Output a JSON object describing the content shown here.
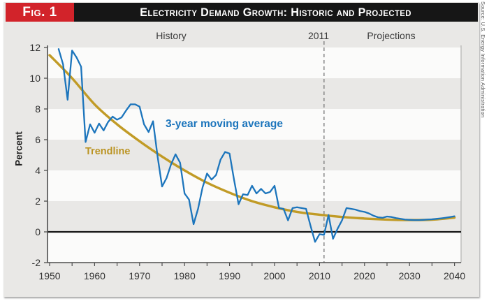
{
  "header": {
    "fig_label": "Fig. 1",
    "title": "Electricity Demand Growth: Historic and Projected"
  },
  "source_note": "Source: U.S. Energy Information Administration",
  "colors": {
    "badge_red": "#d2232a",
    "header_black": "#161616",
    "figure_bg": "#e9e8e6",
    "band_white": "#fbfbfa",
    "axis": "#4d4d4d",
    "tick_text": "#333333",
    "zero_line": "#161616",
    "divider_gray": "#7f7f7f",
    "blue": "#1c75bc",
    "gold": "#c19b26"
  },
  "chart_data": {
    "type": "line",
    "title": "Electricity Demand Growth: Historic and Projected",
    "ylabel": "Percent",
    "xlim": [
      1950,
      2040
    ],
    "ylim": [
      -2,
      12
    ],
    "x_ticks": [
      1950,
      1960,
      1970,
      1980,
      1990,
      2000,
      2010,
      2020,
      2030,
      2040
    ],
    "x_minor_tick_step": 5,
    "y_ticks": [
      -2,
      0,
      2,
      4,
      6,
      8,
      10,
      12
    ],
    "white_bands": [
      [
        -2,
        0
      ],
      [
        2,
        4
      ],
      [
        6,
        8
      ],
      [
        10,
        12
      ]
    ],
    "grid": false,
    "zero_line": 0,
    "divider": {
      "x": 2011,
      "label": "2011"
    },
    "region_labels": [
      {
        "text": "History",
        "x": 1977
      },
      {
        "text": "Projections",
        "x": 2026
      }
    ],
    "series": [
      {
        "name": "3-year moving average",
        "color": "#1c75bc",
        "start_year": 1952,
        "year_step": 1,
        "values": [
          11.9,
          10.9,
          8.6,
          11.8,
          11.35,
          10.75,
          5.85,
          7.0,
          6.45,
          7.05,
          6.6,
          7.15,
          7.5,
          7.3,
          7.45,
          7.9,
          8.3,
          8.3,
          8.15,
          7.0,
          6.5,
          7.2,
          4.9,
          2.95,
          3.5,
          4.4,
          5.05,
          4.5,
          2.5,
          2.1,
          0.5,
          1.5,
          2.9,
          3.8,
          3.4,
          3.7,
          4.7,
          5.2,
          5.1,
          3.4,
          1.8,
          2.45,
          2.4,
          3.0,
          2.5,
          2.8,
          2.5,
          2.6,
          3.0,
          1.55,
          1.5,
          0.75,
          1.55,
          1.6,
          1.55,
          1.5,
          0.4,
          -0.65,
          -0.15,
          -0.2,
          1.1,
          -0.45,
          0.2,
          0.75,
          1.55,
          1.5,
          1.45,
          1.35,
          1.3,
          1.2,
          1.05,
          0.95,
          0.92,
          1.0,
          0.97,
          0.9,
          0.85,
          0.8,
          0.78,
          0.77,
          0.77,
          0.78,
          0.8,
          0.82,
          0.85,
          0.88,
          0.92,
          0.97,
          1.02
        ]
      },
      {
        "name": "Trendline",
        "color": "#c19b26",
        "start_year": 1950,
        "year_step": 5,
        "values": [
          11.5,
          10.0,
          8.3,
          7.0,
          5.9,
          4.9,
          4.0,
          3.2,
          2.55,
          2.0,
          1.6,
          1.3,
          1.12,
          0.97,
          0.87,
          0.8,
          0.77,
          0.79,
          0.93
        ]
      }
    ]
  }
}
